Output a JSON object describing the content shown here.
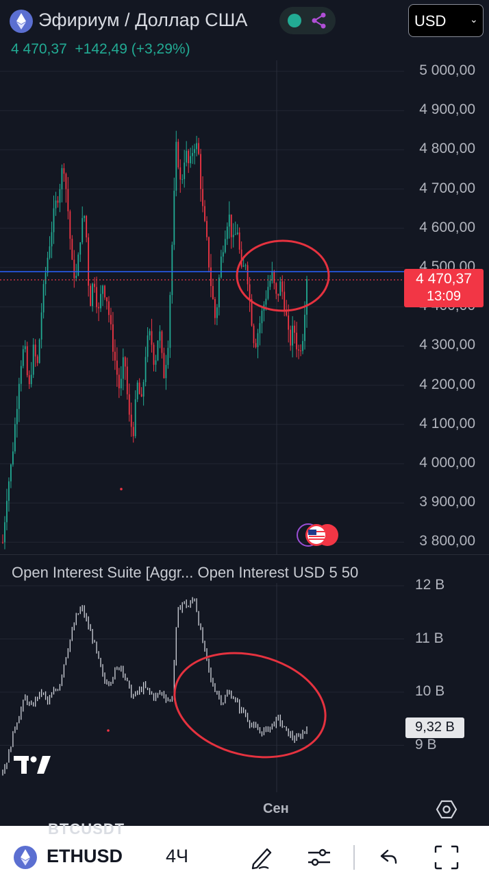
{
  "header": {
    "title": "Эфириум / Доллар США",
    "price": "4 470,37",
    "change": "+142,49",
    "change_percent": "(+3,29%)",
    "currency": "USD",
    "accent_green": "#22ab94",
    "accent_red": "#f23645"
  },
  "price_axis": {
    "ticks": [
      "5 000,00",
      "4 900,00",
      "4 800,00",
      "4 700,00",
      "4 600,00",
      "4 500,00",
      "4 400,00",
      "4 300,00",
      "4 200,00",
      "4 100,00",
      "4 000,00",
      "3 900,00",
      "3 800,00"
    ],
    "last_price": "4 470,37",
    "countdown": "13:09"
  },
  "indicator": {
    "label": "Open Interest Suite [Aggr...   Open Interest USD 5 50",
    "ticks": [
      "12 B",
      "11 B",
      "10 B",
      "9 B"
    ],
    "last_value": "9,32 B"
  },
  "time_axis": {
    "label": "Сен"
  },
  "watermark": "BTCUSDT",
  "bottom_bar": {
    "symbol": "ETHUSD",
    "interval": "4Ч",
    "icons": [
      "eth-logo",
      "draw-pen-icon",
      "indicators-sliders-icon",
      "undo-icon",
      "fullscreen-icon"
    ]
  },
  "chart_data": [
    {
      "type": "candlestick",
      "series": [
        {
          "name": "ETHUSD",
          "interval": "4Ч"
        }
      ],
      "ylim": [
        3780,
        5060
      ],
      "y_ticks": [
        5000,
        4900,
        4800,
        4700,
        4600,
        4500,
        4400,
        4300,
        4200,
        4100,
        4000,
        3900,
        3800
      ],
      "x_label": "Сен",
      "last_value": 4470.37,
      "close_path": [
        3800,
        3930,
        4000,
        4120,
        4250,
        4300,
        4180,
        4290,
        4250,
        4400,
        4500,
        4580,
        4650,
        4700,
        4770,
        4650,
        4500,
        4470,
        4600,
        4640,
        4400,
        4480,
        4380,
        4460,
        4420,
        4330,
        4250,
        4180,
        4280,
        4120,
        4080,
        4200,
        4150,
        4300,
        4330,
        4250,
        4350,
        4220,
        4300,
        4560,
        4820,
        4700,
        4800,
        4750,
        4820,
        4800,
        4650,
        4560,
        4450,
        4360,
        4500,
        4580,
        4640,
        4560,
        4600,
        4480,
        4520,
        4400,
        4300,
        4350,
        4400,
        4450,
        4480,
        4420,
        4460,
        4400,
        4300,
        4350,
        4280,
        4320,
        4470
      ]
    },
    {
      "type": "bar",
      "series": [
        {
          "name": "Open Interest USD"
        }
      ],
      "ylim": [
        8.3,
        12.1
      ],
      "y_ticks": [
        12,
        11,
        10,
        9
      ],
      "last_value": 9.32,
      "path": [
        8.5,
        8.8,
        9.3,
        9.6,
        9.9,
        9.7,
        9.9,
        10.0,
        9.8,
        10.0,
        10.1,
        10.6,
        11.0,
        11.4,
        11.6,
        11.3,
        11.0,
        10.6,
        10.2,
        10.2,
        10.4,
        10.5,
        10.2,
        9.9,
        10.0,
        10.1,
        10.0,
        9.9,
        10.0,
        9.9,
        9.8,
        11.5,
        11.7,
        11.6,
        11.8,
        11.2,
        10.7,
        10.2,
        10.0,
        9.8,
        10.0,
        9.9,
        9.7,
        9.6,
        9.4,
        9.3,
        9.25,
        9.3,
        9.4,
        9.5,
        9.3,
        9.2,
        9.1,
        9.2,
        9.32
      ]
    }
  ]
}
